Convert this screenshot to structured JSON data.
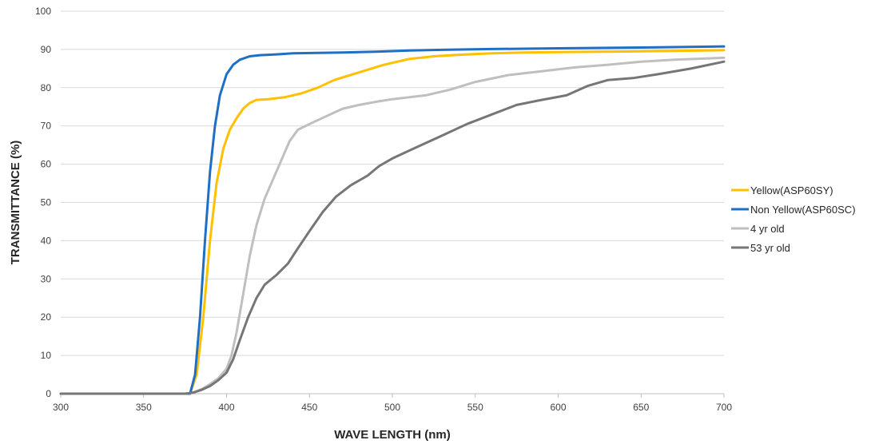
{
  "chart_data": {
    "type": "line",
    "title": "",
    "xlabel": "WAVE LENGTH (nm)",
    "ylabel": "TRANSMITTANCE (%)",
    "xlim": [
      300,
      700
    ],
    "ylim": [
      0,
      100
    ],
    "xticks": [
      "300",
      "350",
      "400",
      "450",
      "500",
      "550",
      "600",
      "650",
      "700"
    ],
    "yticks": [
      "0",
      "10",
      "20",
      "30",
      "40",
      "50",
      "60",
      "70",
      "80",
      "90",
      "100"
    ],
    "grid": "horizontal",
    "legend_position": "right",
    "series": [
      {
        "name": "Yellow(ASP60SY)",
        "color": "#FFC000",
        "points": [
          [
            300,
            0
          ],
          [
            370,
            0
          ],
          [
            378,
            0
          ],
          [
            382,
            5
          ],
          [
            386,
            20
          ],
          [
            390,
            40
          ],
          [
            394,
            55
          ],
          [
            398,
            64
          ],
          [
            402,
            69
          ],
          [
            406,
            72
          ],
          [
            410,
            74.5
          ],
          [
            414,
            76
          ],
          [
            418,
            76.8
          ],
          [
            425,
            77
          ],
          [
            435,
            77.5
          ],
          [
            445,
            78.5
          ],
          [
            455,
            80
          ],
          [
            465,
            82
          ],
          [
            480,
            84
          ],
          [
            495,
            86
          ],
          [
            510,
            87.5
          ],
          [
            525,
            88.2
          ],
          [
            540,
            88.6
          ],
          [
            560,
            89
          ],
          [
            580,
            89.2
          ],
          [
            600,
            89.3
          ],
          [
            650,
            89.5
          ],
          [
            700,
            89.8
          ]
        ]
      },
      {
        "name": "Non Yellow(ASP60SC)",
        "color": "#1F6FC5",
        "points": [
          [
            300,
            0
          ],
          [
            370,
            0
          ],
          [
            378,
            0
          ],
          [
            381,
            5
          ],
          [
            384,
            20
          ],
          [
            387,
            40
          ],
          [
            390,
            58
          ],
          [
            393,
            70
          ],
          [
            396,
            78
          ],
          [
            400,
            83.5
          ],
          [
            404,
            86
          ],
          [
            408,
            87.3
          ],
          [
            414,
            88.2
          ],
          [
            420,
            88.5
          ],
          [
            430,
            88.7
          ],
          [
            440,
            89
          ],
          [
            455,
            89.1
          ],
          [
            470,
            89.2
          ],
          [
            490,
            89.4
          ],
          [
            510,
            89.7
          ],
          [
            530,
            89.9
          ],
          [
            560,
            90.1
          ],
          [
            600,
            90.3
          ],
          [
            650,
            90.5
          ],
          [
            700,
            90.8
          ]
        ]
      },
      {
        "name": "4 yr old",
        "color": "#BFBFBF",
        "points": [
          [
            300,
            0
          ],
          [
            375,
            0
          ],
          [
            380,
            0.3
          ],
          [
            385,
            1.2
          ],
          [
            390,
            2.5
          ],
          [
            395,
            4
          ],
          [
            400,
            6.5
          ],
          [
            403,
            10
          ],
          [
            406,
            16
          ],
          [
            410,
            26
          ],
          [
            414,
            36
          ],
          [
            418,
            44
          ],
          [
            423,
            51
          ],
          [
            428,
            56
          ],
          [
            433,
            61
          ],
          [
            438,
            66
          ],
          [
            443,
            69
          ],
          [
            450,
            70.5
          ],
          [
            460,
            72.5
          ],
          [
            470,
            74.5
          ],
          [
            480,
            75.5
          ],
          [
            490,
            76.3
          ],
          [
            500,
            77
          ],
          [
            520,
            78
          ],
          [
            535,
            79.5
          ],
          [
            550,
            81.5
          ],
          [
            570,
            83.3
          ],
          [
            590,
            84.3
          ],
          [
            610,
            85.3
          ],
          [
            630,
            86
          ],
          [
            650,
            86.8
          ],
          [
            670,
            87.3
          ],
          [
            700,
            87.8
          ]
        ]
      },
      {
        "name": "53 yr old",
        "color": "#767676",
        "points": [
          [
            300,
            0
          ],
          [
            375,
            0
          ],
          [
            380,
            0.3
          ],
          [
            385,
            1
          ],
          [
            390,
            2
          ],
          [
            395,
            3.5
          ],
          [
            400,
            5.5
          ],
          [
            404,
            9
          ],
          [
            408,
            14
          ],
          [
            413,
            20
          ],
          [
            418,
            25
          ],
          [
            423,
            28.5
          ],
          [
            430,
            31
          ],
          [
            437,
            34
          ],
          [
            443,
            38
          ],
          [
            450,
            42.5
          ],
          [
            458,
            47.5
          ],
          [
            466,
            51.5
          ],
          [
            475,
            54.5
          ],
          [
            485,
            57
          ],
          [
            492,
            59.5
          ],
          [
            500,
            61.5
          ],
          [
            515,
            64.5
          ],
          [
            530,
            67.5
          ],
          [
            545,
            70.5
          ],
          [
            560,
            73
          ],
          [
            575,
            75.5
          ],
          [
            590,
            76.8
          ],
          [
            605,
            78
          ],
          [
            618,
            80.5
          ],
          [
            630,
            82
          ],
          [
            645,
            82.5
          ],
          [
            660,
            83.5
          ],
          [
            680,
            85
          ],
          [
            700,
            86.8
          ]
        ]
      }
    ]
  }
}
